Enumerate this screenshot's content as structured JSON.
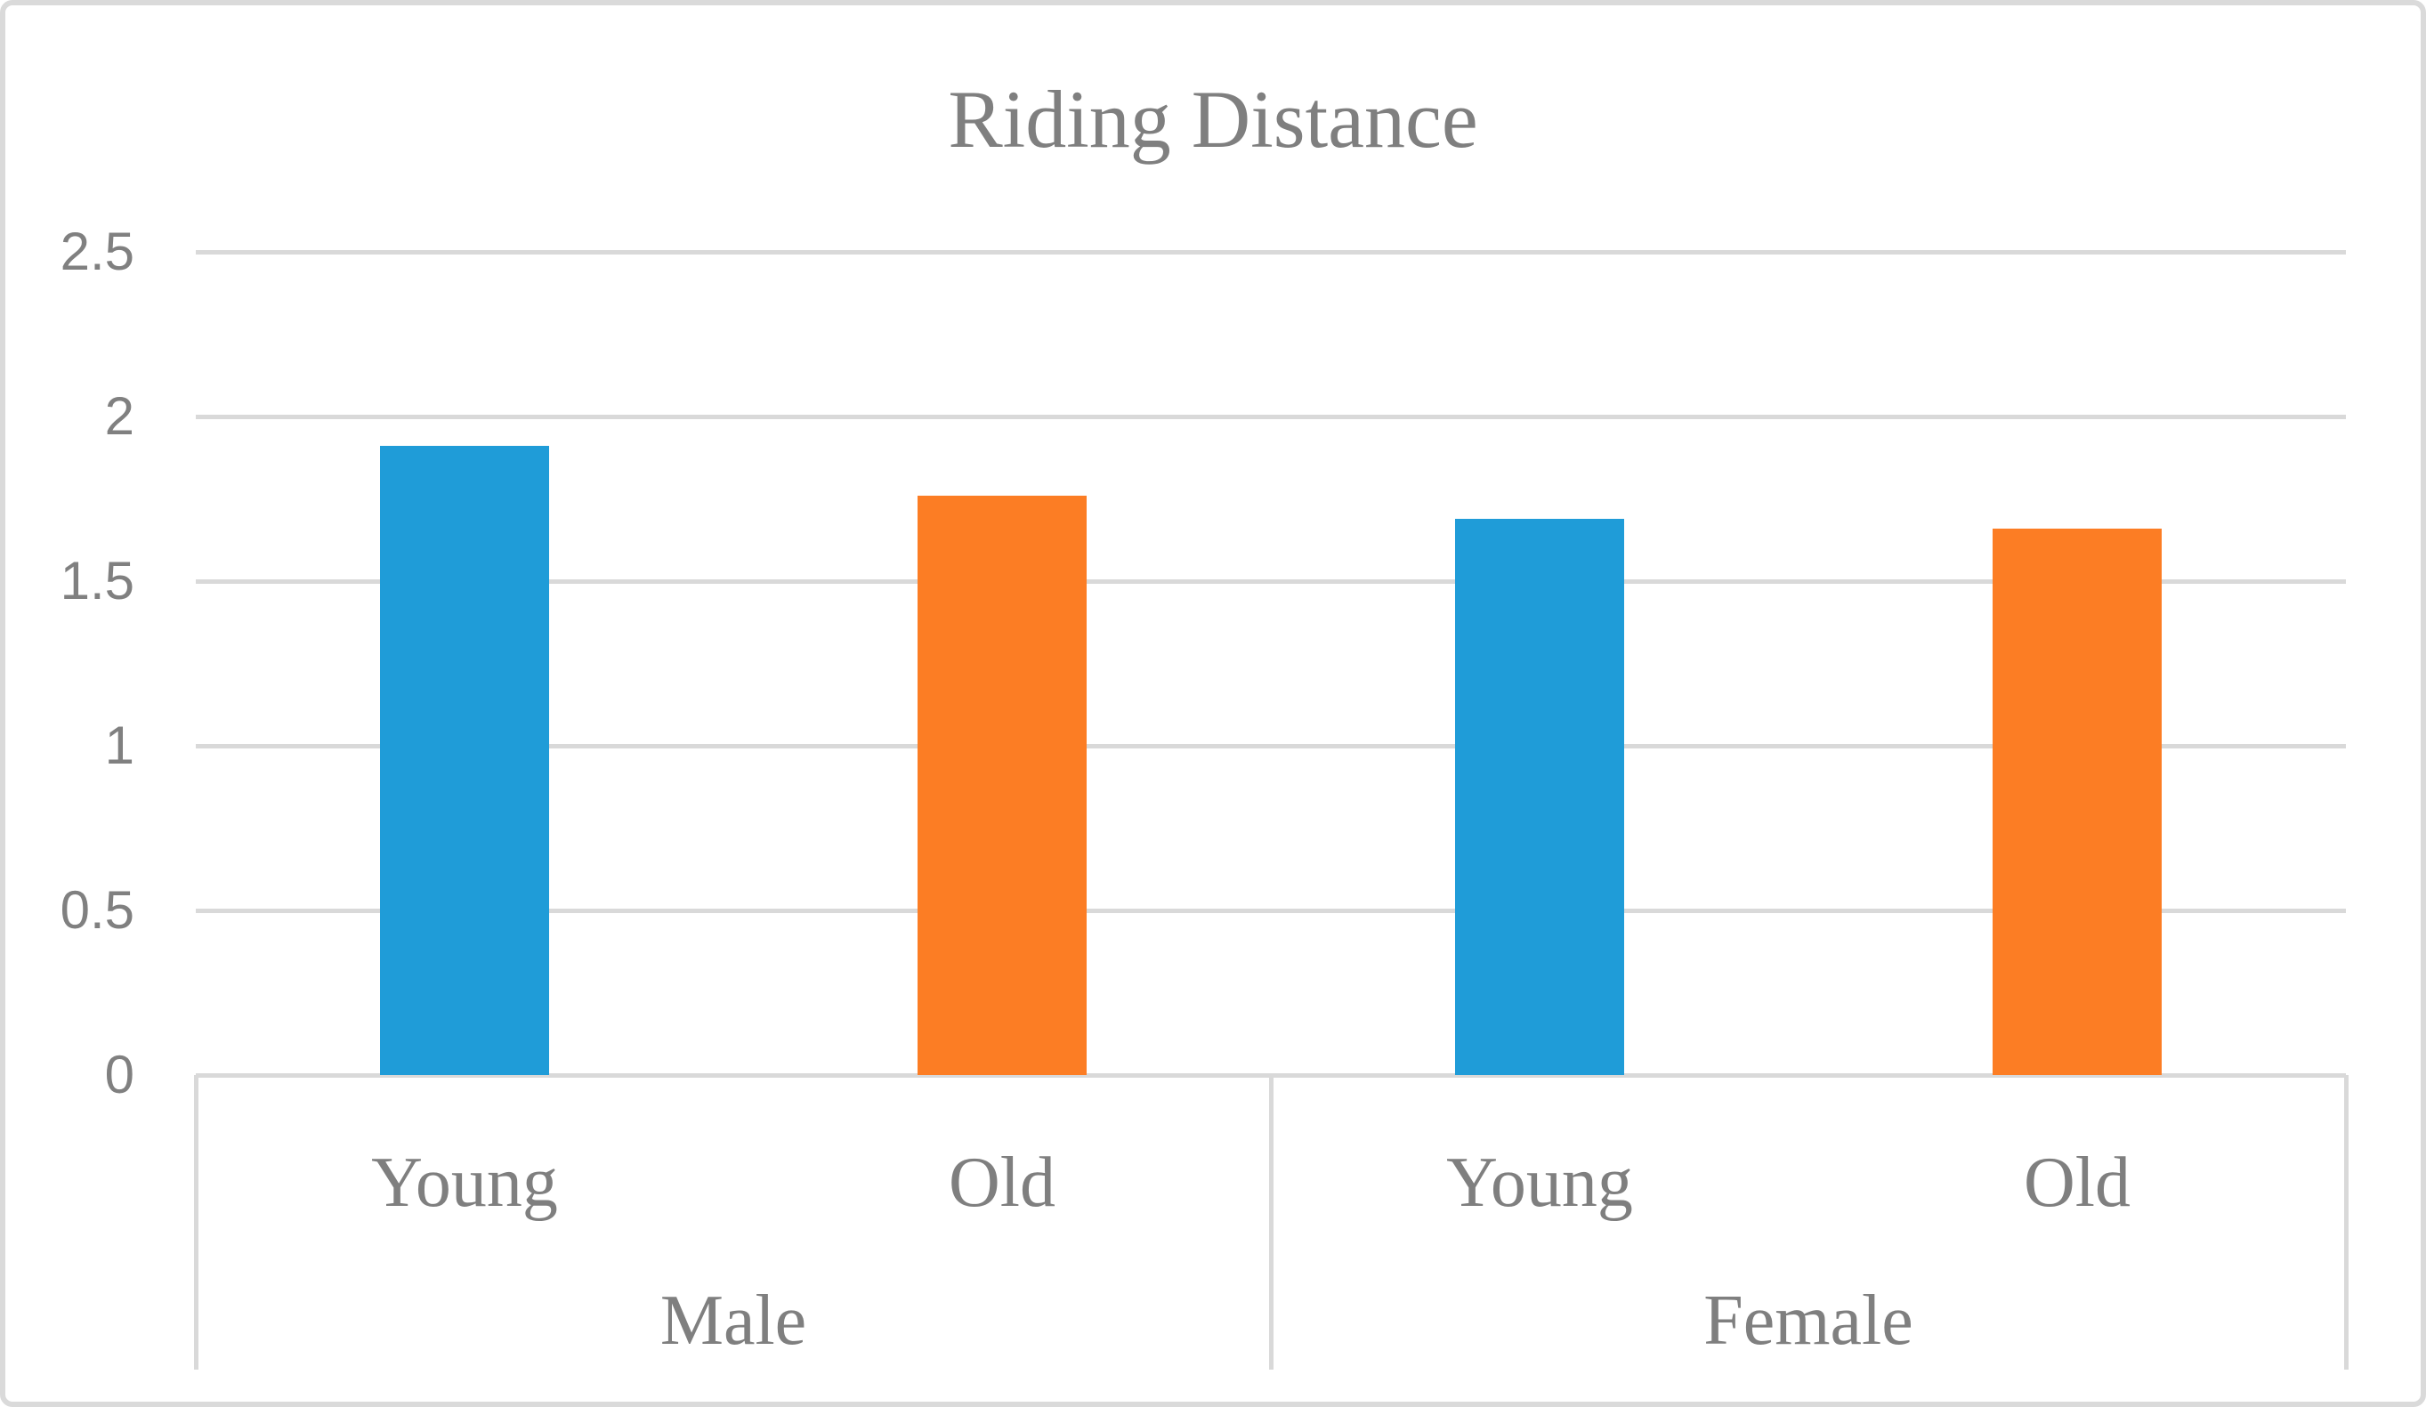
{
  "figure": {
    "title": "Riding Distance"
  },
  "colors": {
    "young_bar": "#1F9CD8",
    "old_bar": "#FC7D24",
    "gridline": "#D9D9D9",
    "axis_text": "#808080",
    "title_text": "#7F7F7F",
    "figure_border": "#DADADA"
  },
  "chart_data": {
    "type": "bar",
    "title": "Riding Distance",
    "xlabel": "",
    "ylabel": "",
    "ylim": [
      0,
      2.5
    ],
    "yticks": [
      0,
      0.5,
      1,
      1.5,
      2,
      2.5
    ],
    "ytick_labels": [
      "0",
      "0.5",
      "1",
      "1.5",
      "2",
      "2.5"
    ],
    "grid": true,
    "legend": false,
    "categories": [
      "Young",
      "Old",
      "Young",
      "Old"
    ],
    "group_labels": [
      "Male",
      "Female"
    ],
    "groups": [
      {
        "name": "Male",
        "categories": [
          "Young",
          "Old"
        ],
        "values": [
          1.91,
          1.76
        ]
      },
      {
        "name": "Female",
        "categories": [
          "Young",
          "Old"
        ],
        "values": [
          1.69,
          1.66
        ]
      }
    ],
    "series_colors": {
      "Young": "#1F9CD8",
      "Old": "#FC7D24"
    }
  }
}
